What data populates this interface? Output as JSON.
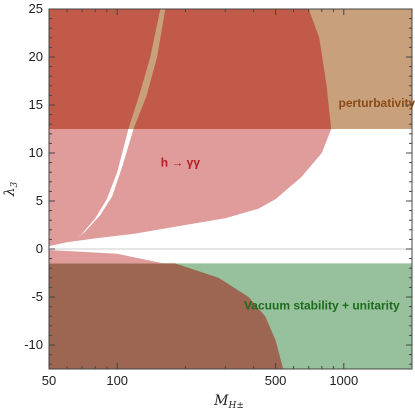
{
  "chart_data": {
    "type": "area",
    "title": "",
    "xlabel": "M",
    "xlabel_sub": "H±",
    "ylabel": "λ",
    "ylabel_sub": "3",
    "xscale": "log",
    "xlim": [
      50,
      2000
    ],
    "ylim": [
      -12.5,
      25
    ],
    "xticks": [
      50,
      100,
      500,
      1000
    ],
    "xtick_labels": [
      "50",
      "100",
      "500",
      "1000"
    ],
    "yticks": [
      -10,
      -5,
      0,
      5,
      10,
      15,
      20,
      25
    ],
    "ytick_labels": [
      "-10",
      "-5",
      "0",
      "5",
      "10",
      "15",
      "20",
      "25"
    ],
    "grid": false,
    "zero_line": true,
    "colors": {
      "pert": "#c9a07c",
      "red_dark": "#c25a4a",
      "pink": "#e09b9b",
      "green": "#97c19c",
      "brown": "#9c6652",
      "h_label": "#b02020",
      "pert_label": "#8a4a14",
      "vac_label": "#1e6b1e"
    },
    "regions": [
      {
        "name": "perturbativity",
        "label": "perturbativity",
        "label_at": [
          1400,
          14.8
        ],
        "polygon": [
          [
            50,
            12.5
          ],
          [
            2000,
            12.5
          ],
          [
            2000,
            25
          ],
          [
            50,
            25
          ]
        ]
      },
      {
        "name": "h-gamma-gamma-overlap",
        "polygon": [
          [
            50,
            12.5
          ],
          [
            50,
            25
          ],
          [
            160,
            25
          ],
          [
            230,
            25
          ],
          [
            400,
            25
          ],
          [
            600,
            25
          ],
          [
            700,
            25
          ],
          [
            780,
            22
          ],
          [
            840,
            17
          ],
          [
            880,
            12.5
          ]
        ]
      },
      {
        "name": "h-gamma-gamma",
        "label": "h → γγ",
        "label_at": [
          190,
          8.6
        ],
        "polygon": [
          [
            50,
            0.3
          ],
          [
            50,
            12.5
          ],
          [
            880,
            12.5
          ],
          [
            800,
            10
          ],
          [
            650,
            7.5
          ],
          [
            500,
            5.2
          ],
          [
            420,
            4.2
          ],
          [
            300,
            3.2
          ],
          [
            200,
            2.5
          ],
          [
            120,
            1.6
          ],
          [
            80,
            1.1
          ],
          [
            60,
            0.7
          ]
        ]
      },
      {
        "name": "white-strip",
        "polygon": [
          [
            62,
            0.5
          ],
          [
            70,
            1.6
          ],
          [
            80,
            3.2
          ],
          [
            90,
            5.2
          ],
          [
            100,
            8
          ],
          [
            112,
            12.5
          ],
          [
            118,
            12.5
          ],
          [
            105,
            8.5
          ],
          [
            95,
            5.5
          ],
          [
            84,
            3.5
          ],
          [
            72,
            1.8
          ],
          [
            64,
            0.8
          ]
        ]
      },
      {
        "name": "tan-band",
        "polygon": [
          [
            112,
            12.5
          ],
          [
            125,
            16
          ],
          [
            140,
            20
          ],
          [
            155,
            25
          ],
          [
            163,
            25
          ],
          [
            150,
            20
          ],
          [
            135,
            16
          ],
          [
            118,
            12.5
          ]
        ]
      },
      {
        "name": "vacuum-stability-unitarity",
        "label": "Vacuum stability + unitarity",
        "label_at": [
          800,
          -6.3
        ],
        "polygon": [
          [
            50,
            -1.5
          ],
          [
            2000,
            -1.5
          ],
          [
            2000,
            -12.5
          ],
          [
            50,
            -12.5
          ]
        ]
      },
      {
        "name": "overlap-brown",
        "polygon": [
          [
            50,
            -1.5
          ],
          [
            180,
            -1.5
          ],
          [
            280,
            -3
          ],
          [
            380,
            -5
          ],
          [
            450,
            -7
          ],
          [
            500,
            -9.5
          ],
          [
            540,
            -12.5
          ],
          [
            50,
            -12.5
          ]
        ]
      },
      {
        "name": "h-gamma-gamma-lower-band",
        "polygon": [
          [
            50,
            -0.1
          ],
          [
            100,
            -0.5
          ],
          [
            160,
            -1.5
          ],
          [
            50,
            -1.5
          ]
        ]
      }
    ]
  }
}
